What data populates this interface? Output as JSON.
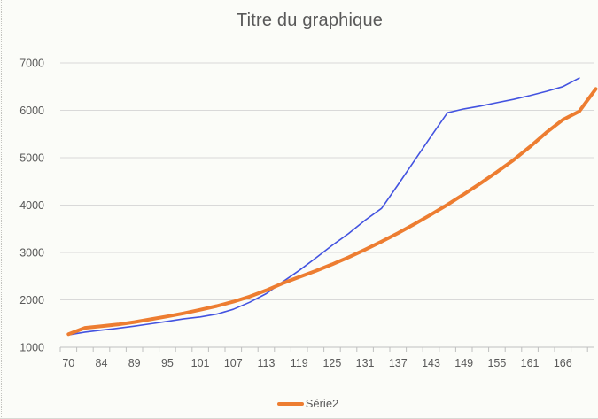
{
  "title": "Titre du graphique",
  "legend": [
    {
      "label": "Série2",
      "color": "#ED7D31"
    }
  ],
  "colors": {
    "background": "#fbfcf8",
    "gridline": "#d9d9d9",
    "axis_line": "#bfbfbf",
    "tick": "#bfbfbf",
    "text": "#595959",
    "series_blue": "#4353E0",
    "series_orange": "#ED7D31"
  },
  "chart_data": {
    "type": "line",
    "title": "Titre du graphique",
    "xlabel": "",
    "ylabel": "",
    "grid": "horizontal",
    "legend_position": "bottom",
    "legend_entries": [
      "Série2"
    ],
    "x_axis": {
      "labels": [
        "70",
        "84",
        "89",
        "95",
        "101",
        "107",
        "113",
        "119",
        "125",
        "131",
        "137",
        "143",
        "149",
        "155",
        "161",
        "166"
      ],
      "label_every": 2,
      "num_points": 33
    },
    "y_axis": {
      "min": 1000,
      "max": 7000,
      "step": 1000,
      "ticks": [
        7000,
        6000,
        5000,
        4000,
        3000,
        2000,
        1000
      ]
    },
    "series": [
      {
        "name": "",
        "shown_in_legend": false,
        "color": "#4353E0",
        "stroke_width": 1.6,
        "values": [
          1260,
          1320,
          1360,
          1400,
          1445,
          1495,
          1545,
          1600,
          1640,
          1700,
          1800,
          1950,
          2130,
          2380,
          2620,
          2880,
          3150,
          3400,
          3680,
          3930,
          4430,
          4940,
          5450,
          5950,
          6030,
          6090,
          6160,
          6230,
          6310,
          6400,
          6500,
          6680
        ]
      },
      {
        "name": "Série2",
        "shown_in_legend": true,
        "color": "#ED7D31",
        "stroke_width": 4,
        "values": [
          1275,
          1410,
          1445,
          1480,
          1530,
          1590,
          1650,
          1715,
          1790,
          1870,
          1960,
          2070,
          2200,
          2350,
          2480,
          2610,
          2750,
          2900,
          3060,
          3230,
          3410,
          3600,
          3800,
          4010,
          4230,
          4460,
          4700,
          4950,
          5230,
          5530,
          5800,
          5980,
          6450
        ]
      }
    ]
  }
}
